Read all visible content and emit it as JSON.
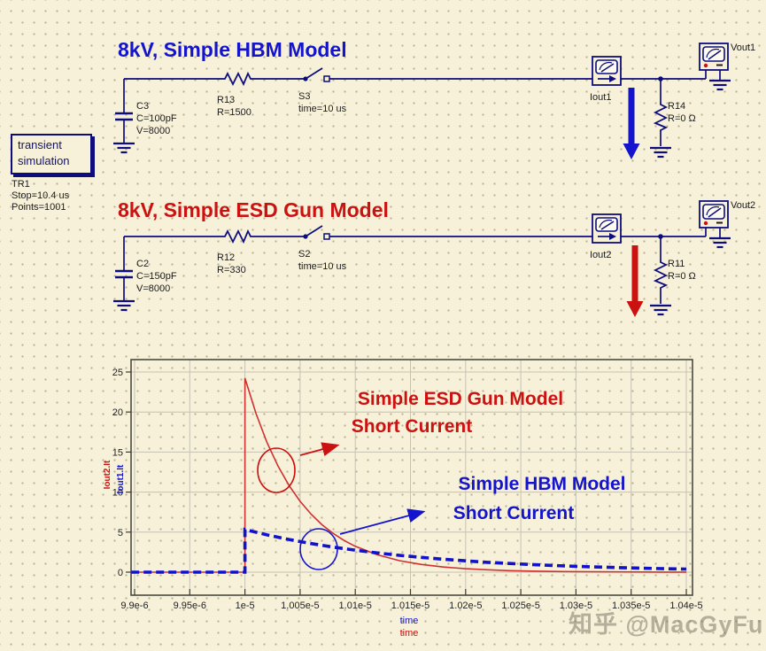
{
  "colors": {
    "navy": "#0d0d7e",
    "blue": "#1414cc",
    "red": "#cc1111",
    "curve_red": "#d03030",
    "curve_blue": "#1111d0",
    "bg": "#f7f1d9"
  },
  "circuits": {
    "hbm": {
      "title": "8kV, Simple HBM Model",
      "cap_name": "C3",
      "cap_value": "C=100pF",
      "cap_init": "V=8000",
      "res_name": "R13",
      "res_value": "R=1500",
      "switch_name": "S3",
      "switch_value": "time=10 us",
      "ammeter_name": "Iout1",
      "shunt_name": "R14",
      "shunt_value": "R=0 Ω",
      "voltmeter_name": "Vout1",
      "arrow_color": "#1414cc"
    },
    "esd": {
      "title": "8kV, Simple ESD Gun Model",
      "cap_name": "C2",
      "cap_value": "C=150pF",
      "cap_init": "V=8000",
      "res_name": "R12",
      "res_value": "R=330",
      "switch_name": "S2",
      "switch_value": "time=10 us",
      "ammeter_name": "Iout2",
      "shunt_name": "R11",
      "shunt_value": "R=0 Ω",
      "voltmeter_name": "Vout2",
      "arrow_color": "#cc1111"
    }
  },
  "simulation": {
    "box_line1": "transient",
    "box_line2": "simulation",
    "name": "TR1",
    "stop": "Stop=10.4 us",
    "points": "Points=1001"
  },
  "chart_data": {
    "type": "line",
    "title": "",
    "xlim": [
      9.8968e-06,
      1.04056e-05
    ],
    "ylim": [
      -2.88,
      26.55
    ],
    "grid": true,
    "x_ticks": [
      "9.9e-6",
      "9.95e-6",
      "1e-5",
      "1.005e-5",
      "1.01e-5",
      "1.015e-5",
      "1.02e-5",
      "1.025e-5",
      "1.03e-5",
      "1.035e-5",
      "1.04e-5"
    ],
    "x_tick_values": [
      9.9e-06,
      9.95e-06,
      1e-05,
      1.005e-05,
      1.01e-05,
      1.015e-05,
      1.02e-05,
      1.025e-05,
      1.03e-05,
      1.035e-05,
      1.04e-05
    ],
    "y_ticks": [
      0,
      5,
      10,
      15,
      20,
      25
    ],
    "xlabels": [
      {
        "label": "time",
        "color": "#1414cc"
      },
      {
        "label": "time",
        "color": "#cc1111"
      }
    ],
    "ylabels": [
      {
        "label": "Iout2.It",
        "color": "#cc1111"
      },
      {
        "label": "Iout1.It",
        "color": "#1414cc"
      }
    ],
    "series": [
      {
        "name": "Iout2.It",
        "color": "#d03030",
        "dash": "",
        "width": 1.6,
        "t": [
          9.897e-06,
          1e-05,
          1e-05,
          1.001e-05,
          1.002e-05,
          1.003e-05,
          1.004e-05,
          1.005e-05,
          1.006e-05,
          1.007e-05,
          1.008e-05,
          1.009e-05,
          1.01e-05,
          1.012e-05,
          1.014e-05,
          1.016e-05,
          1.018e-05,
          1.02e-05,
          1.022e-05,
          1.024e-05,
          1.026e-05,
          1.028e-05,
          1.03e-05,
          1.032e-05,
          1.034e-05,
          1.036e-05,
          1.038e-05,
          1.04e-05
        ],
        "i": [
          0,
          0,
          24.24,
          19.81,
          16.19,
          13.24,
          10.82,
          8.85,
          7.23,
          5.91,
          4.83,
          3.95,
          3.23,
          2.16,
          1.44,
          0.96,
          0.64,
          0.43,
          0.29,
          0.19,
          0.13,
          0.09,
          0.06,
          0.04,
          0.03,
          0.02,
          0.01,
          0.01
        ]
      },
      {
        "name": "Iout1.It",
        "color": "#1111d0",
        "dash": "9 5",
        "width": 3.6,
        "t": [
          9.897e-06,
          1e-05,
          1e-05,
          1.002e-05,
          1.004e-05,
          1.006e-05,
          1.008e-05,
          1.01e-05,
          1.012e-05,
          1.014e-05,
          1.016e-05,
          1.018e-05,
          1.02e-05,
          1.022e-05,
          1.024e-05,
          1.026e-05,
          1.028e-05,
          1.03e-05,
          1.032e-05,
          1.034e-05,
          1.036e-05,
          1.038e-05,
          1.04e-05
        ],
        "i": [
          0,
          0,
          5.33,
          4.66,
          4.08,
          3.57,
          3.13,
          2.74,
          2.4,
          2.1,
          1.84,
          1.61,
          1.41,
          1.23,
          1.08,
          0.95,
          0.83,
          0.73,
          0.64,
          0.56,
          0.49,
          0.43,
          0.38
        ]
      }
    ],
    "annotations": [
      {
        "lines": [
          "Simple ESD Gun Model",
          "Short Current"
        ],
        "color": "#cc1111"
      },
      {
        "lines": [
          "Simple HBM Model",
          "Short Current"
        ],
        "color": "#1414cc"
      }
    ]
  },
  "watermark": "知乎 @MacGyFu"
}
